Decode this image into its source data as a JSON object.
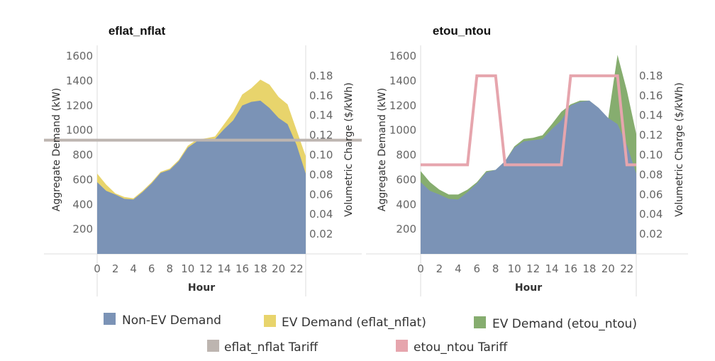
{
  "colors": {
    "non_ev": "#7b93b6",
    "ev_flat": "#e8d46c",
    "ev_tou": "#86ad6f",
    "flat_tariff": "#bdb5b0",
    "tou_tariff": "#e6a5ad",
    "grid": "#dddddd"
  },
  "chart_data": [
    {
      "type": "area",
      "title": "eflat_nflat",
      "xlabel": "Hour",
      "ylabel": "Aggregate Demand (kW)",
      "y2label": "Volumetric Charge ($/kWh)",
      "x": [
        0,
        1,
        2,
        3,
        4,
        5,
        6,
        7,
        8,
        9,
        10,
        11,
        12,
        13,
        14,
        15,
        16,
        17,
        18,
        19,
        20,
        21,
        22,
        23
      ],
      "xticks": [
        "0",
        "2",
        "4",
        "6",
        "8",
        "10",
        "12",
        "14",
        "16",
        "18",
        "20",
        "22"
      ],
      "yticks": [
        "200",
        "400",
        "600",
        "800",
        "1000",
        "1200",
        "1400",
        "1600"
      ],
      "y2ticks": [
        "0.02",
        "0.04",
        "0.06",
        "0.08",
        "0.10",
        "0.12",
        "0.14",
        "0.16",
        "0.18"
      ],
      "ylim": [
        0,
        1600
      ],
      "y2lim": [
        0,
        0.2
      ],
      "series": [
        {
          "name": "Non-EV Demand",
          "values": [
            580,
            510,
            480,
            445,
            440,
            500,
            570,
            655,
            680,
            750,
            860,
            910,
            920,
            930,
            1010,
            1080,
            1200,
            1230,
            1240,
            1180,
            1100,
            1050,
            880,
            650
          ]
        },
        {
          "name": "EV Demand (eflat_nflat)",
          "values": [
            650,
            560,
            490,
            460,
            450,
            510,
            580,
            665,
            690,
            760,
            875,
            925,
            935,
            950,
            1050,
            1150,
            1290,
            1340,
            1410,
            1370,
            1270,
            1210,
            1000,
            790
          ]
        }
      ],
      "tariff": {
        "name": "eflat_nflat Tariff",
        "values": [
          0.115,
          0.115,
          0.115,
          0.115,
          0.115,
          0.115,
          0.115,
          0.115,
          0.115,
          0.115,
          0.115,
          0.115,
          0.115,
          0.115,
          0.115,
          0.115,
          0.115,
          0.115,
          0.115,
          0.115,
          0.115,
          0.115,
          0.115,
          0.115
        ]
      }
    },
    {
      "type": "area",
      "title": "etou_ntou",
      "xlabel": "Hour",
      "ylabel": "Aggregate Demand (kW)",
      "y2label": "Volumetric Charge ($/kWh)",
      "x": [
        0,
        1,
        2,
        3,
        4,
        5,
        6,
        7,
        8,
        9,
        10,
        11,
        12,
        13,
        14,
        15,
        16,
        17,
        18,
        19,
        20,
        21,
        22,
        23
      ],
      "xticks": [
        "0",
        "2",
        "4",
        "6",
        "8",
        "10",
        "12",
        "14",
        "16",
        "18",
        "20",
        "22"
      ],
      "yticks": [
        "200",
        "400",
        "600",
        "800",
        "1000",
        "1200",
        "1400",
        "1600"
      ],
      "y2ticks": [
        "0.02",
        "0.04",
        "0.06",
        "0.08",
        "0.10",
        "0.12",
        "0.14",
        "0.16",
        "0.18"
      ],
      "ylim": [
        0,
        1600
      ],
      "y2lim": [
        0,
        0.2
      ],
      "series": [
        {
          "name": "Non-EV Demand",
          "values": [
            580,
            510,
            480,
            445,
            440,
            500,
            570,
            660,
            680,
            750,
            860,
            910,
            920,
            930,
            1010,
            1080,
            1200,
            1230,
            1240,
            1180,
            1100,
            1050,
            880,
            650
          ]
        },
        {
          "name": "EV Demand (etou_ntou)",
          "values": [
            670,
            580,
            520,
            480,
            480,
            520,
            580,
            670,
            680,
            750,
            870,
            930,
            940,
            960,
            1050,
            1150,
            1210,
            1240,
            1240,
            1180,
            1090,
            1610,
            1320,
            970
          ]
        }
      ],
      "tariff": {
        "name": "etou_ntou Tariff",
        "values": [
          0.09,
          0.09,
          0.09,
          0.09,
          0.09,
          0.09,
          0.18,
          0.18,
          0.18,
          0.09,
          0.09,
          0.09,
          0.09,
          0.09,
          0.09,
          0.09,
          0.18,
          0.18,
          0.18,
          0.18,
          0.18,
          0.18,
          0.09,
          0.09
        ]
      }
    }
  ],
  "legend": {
    "items": [
      {
        "label": "Non-EV Demand",
        "color_key": "non_ev"
      },
      {
        "label": "EV Demand (eflat_nflat)",
        "color_key": "ev_flat"
      },
      {
        "label": "EV Demand (etou_ntou)",
        "color_key": "ev_tou"
      },
      {
        "label": "eflat_nflat Tariff",
        "color_key": "flat_tariff"
      },
      {
        "label": "etou_ntou Tariff",
        "color_key": "tou_tariff"
      }
    ]
  }
}
